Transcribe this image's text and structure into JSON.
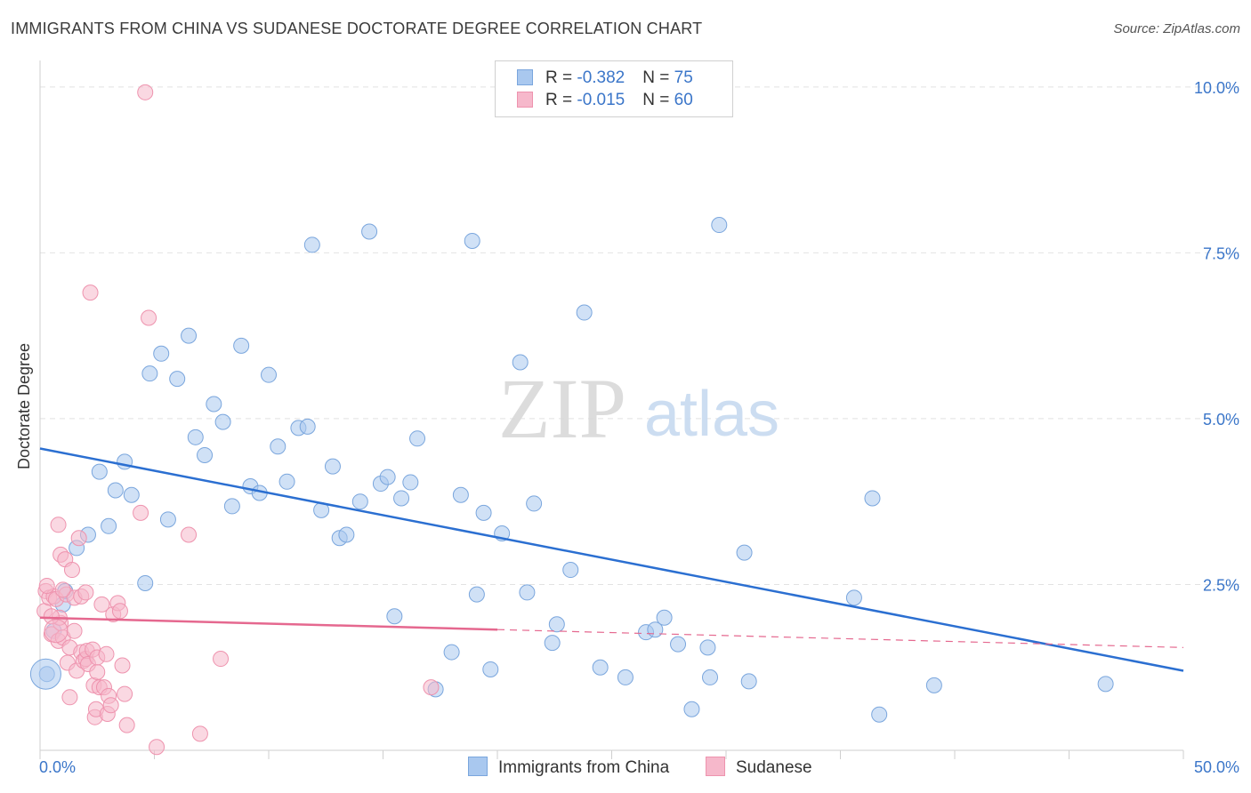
{
  "title": "IMMIGRANTS FROM CHINA VS SUDANESE DOCTORATE DEGREE CORRELATION CHART",
  "source": "Source: ZipAtlas.com",
  "watermark": {
    "zip": "ZIP",
    "atlas": "atlas"
  },
  "colors": {
    "china_fill": "#a9c8ef",
    "china_stroke": "#7aa6dd",
    "china_line": "#2b6fd1",
    "sudanese_fill": "#f6b8cb",
    "sudanese_stroke": "#ee93ae",
    "sudanese_line": "#e5688f",
    "axis_text": "#3b76c9",
    "grid": "#e2e2e2"
  },
  "legend": {
    "rows": [
      {
        "r_label": "R = ",
        "r_value": "-0.382",
        "n_label": "N = ",
        "n_value": "75"
      },
      {
        "r_label": "R = ",
        "r_value": "-0.015",
        "n_label": "N = ",
        "n_value": "60"
      }
    ]
  },
  "bottom_legend": [
    "Immigrants from China",
    "Sudanese"
  ],
  "chart_data": {
    "type": "scatter",
    "title": "IMMIGRANTS FROM CHINA VS SUDANESE DOCTORATE DEGREE CORRELATION CHART",
    "xlabel": "",
    "ylabel": "Doctorate Degree",
    "xlim": [
      0,
      50
    ],
    "ylim": [
      0,
      10.4
    ],
    "x_tick_labels": [
      "0.0%",
      "50.0%"
    ],
    "y_tick_labels": [
      "2.5%",
      "5.0%",
      "7.5%",
      "10.0%"
    ],
    "y_ticks": [
      2.5,
      5.0,
      7.5,
      10.0
    ],
    "grid": true,
    "legend_position": "top-center",
    "series": [
      {
        "name": "Immigrants from China",
        "r": -0.382,
        "n": 75,
        "trend": {
          "x0": 0,
          "y0": 4.55,
          "x1": 50,
          "y1": 1.2
        },
        "points": [
          [
            0.3,
            1.15
          ],
          [
            0.6,
            1.8
          ],
          [
            1.0,
            2.2
          ],
          [
            1.1,
            2.4
          ],
          [
            1.6,
            3.05
          ],
          [
            2.1,
            3.25
          ],
          [
            2.6,
            4.2
          ],
          [
            3.0,
            3.38
          ],
          [
            3.3,
            3.92
          ],
          [
            3.7,
            4.35
          ],
          [
            4.0,
            3.85
          ],
          [
            4.6,
            2.52
          ],
          [
            4.8,
            5.68
          ],
          [
            5.3,
            5.98
          ],
          [
            5.6,
            3.48
          ],
          [
            6.0,
            5.6
          ],
          [
            6.5,
            6.25
          ],
          [
            6.8,
            4.72
          ],
          [
            7.2,
            4.45
          ],
          [
            7.6,
            5.22
          ],
          [
            8.0,
            4.95
          ],
          [
            8.4,
            3.68
          ],
          [
            8.8,
            6.1
          ],
          [
            9.2,
            3.98
          ],
          [
            9.6,
            3.88
          ],
          [
            10.0,
            5.66
          ],
          [
            10.4,
            4.58
          ],
          [
            10.8,
            4.05
          ],
          [
            11.3,
            4.86
          ],
          [
            11.7,
            4.88
          ],
          [
            11.9,
            7.62
          ],
          [
            12.3,
            3.62
          ],
          [
            12.8,
            4.28
          ],
          [
            13.1,
            3.2
          ],
          [
            13.4,
            3.25
          ],
          [
            14.0,
            3.75
          ],
          [
            14.4,
            7.82
          ],
          [
            14.9,
            4.02
          ],
          [
            15.2,
            4.12
          ],
          [
            15.5,
            2.02
          ],
          [
            15.8,
            3.8
          ],
          [
            16.2,
            4.04
          ],
          [
            16.5,
            4.7
          ],
          [
            17.3,
            0.92
          ],
          [
            18.0,
            1.48
          ],
          [
            18.4,
            3.85
          ],
          [
            18.9,
            7.68
          ],
          [
            19.1,
            2.35
          ],
          [
            19.4,
            3.58
          ],
          [
            19.7,
            1.22
          ],
          [
            20.2,
            3.27
          ],
          [
            21.0,
            5.85
          ],
          [
            21.3,
            2.38
          ],
          [
            21.6,
            3.72
          ],
          [
            22.4,
            1.62
          ],
          [
            22.6,
            1.9
          ],
          [
            23.2,
            2.72
          ],
          [
            23.8,
            6.6
          ],
          [
            24.5,
            1.25
          ],
          [
            25.6,
            1.1
          ],
          [
            26.5,
            1.78
          ],
          [
            26.9,
            1.82
          ],
          [
            27.3,
            2.0
          ],
          [
            27.9,
            1.6
          ],
          [
            28.5,
            0.62
          ],
          [
            29.2,
            1.55
          ],
          [
            29.3,
            1.1
          ],
          [
            29.7,
            7.92
          ],
          [
            30.8,
            2.98
          ],
          [
            31.0,
            1.04
          ],
          [
            35.6,
            2.3
          ],
          [
            36.4,
            3.8
          ],
          [
            36.7,
            0.54
          ],
          [
            39.1,
            0.98
          ],
          [
            46.6,
            1.0
          ]
        ]
      },
      {
        "name": "Sudanese",
        "r": -0.015,
        "n": 60,
        "trend": {
          "x0": 0,
          "y0": 2.0,
          "x1": 20,
          "y1": 1.82,
          "dash_x1": 50,
          "dash_y1": 1.55
        },
        "points": [
          [
            0.2,
            2.1
          ],
          [
            0.25,
            2.4
          ],
          [
            0.4,
            2.3
          ],
          [
            0.5,
            1.75
          ],
          [
            0.6,
            2.32
          ],
          [
            0.7,
            2.28
          ],
          [
            0.8,
            1.65
          ],
          [
            0.9,
            1.92
          ],
          [
            0.9,
            2.95
          ],
          [
            0.8,
            3.4
          ],
          [
            0.85,
            2.0
          ],
          [
            1.0,
            1.7
          ],
          [
            1.1,
            2.88
          ],
          [
            1.15,
            2.35
          ],
          [
            1.2,
            1.32
          ],
          [
            1.3,
            1.55
          ],
          [
            1.3,
            0.8
          ],
          [
            1.4,
            2.72
          ],
          [
            1.5,
            1.8
          ],
          [
            1.5,
            2.3
          ],
          [
            1.6,
            1.2
          ],
          [
            1.7,
            3.2
          ],
          [
            1.8,
            2.32
          ],
          [
            1.8,
            1.48
          ],
          [
            1.9,
            1.35
          ],
          [
            2.0,
            1.38
          ],
          [
            2.0,
            2.38
          ],
          [
            2.05,
            1.5
          ],
          [
            2.1,
            1.3
          ],
          [
            2.2,
            6.9
          ],
          [
            2.3,
            1.52
          ],
          [
            2.35,
            0.98
          ],
          [
            2.4,
            0.5
          ],
          [
            2.45,
            0.62
          ],
          [
            2.5,
            1.18
          ],
          [
            2.5,
            1.4
          ],
          [
            2.6,
            0.95
          ],
          [
            2.7,
            2.2
          ],
          [
            2.8,
            0.95
          ],
          [
            2.9,
            1.45
          ],
          [
            2.95,
            0.55
          ],
          [
            3.0,
            0.82
          ],
          [
            3.1,
            0.68
          ],
          [
            3.2,
            2.05
          ],
          [
            3.4,
            2.22
          ],
          [
            3.5,
            2.1
          ],
          [
            3.6,
            1.28
          ],
          [
            3.7,
            0.85
          ],
          [
            3.8,
            0.38
          ],
          [
            4.4,
            3.58
          ],
          [
            4.6,
            9.92
          ],
          [
            4.75,
            6.52
          ],
          [
            5.1,
            0.05
          ],
          [
            6.5,
            3.25
          ],
          [
            7.0,
            0.25
          ],
          [
            7.9,
            1.38
          ],
          [
            17.1,
            0.95
          ],
          [
            0.3,
            2.48
          ],
          [
            0.5,
            2.02
          ],
          [
            1.0,
            2.42
          ]
        ]
      }
    ]
  }
}
